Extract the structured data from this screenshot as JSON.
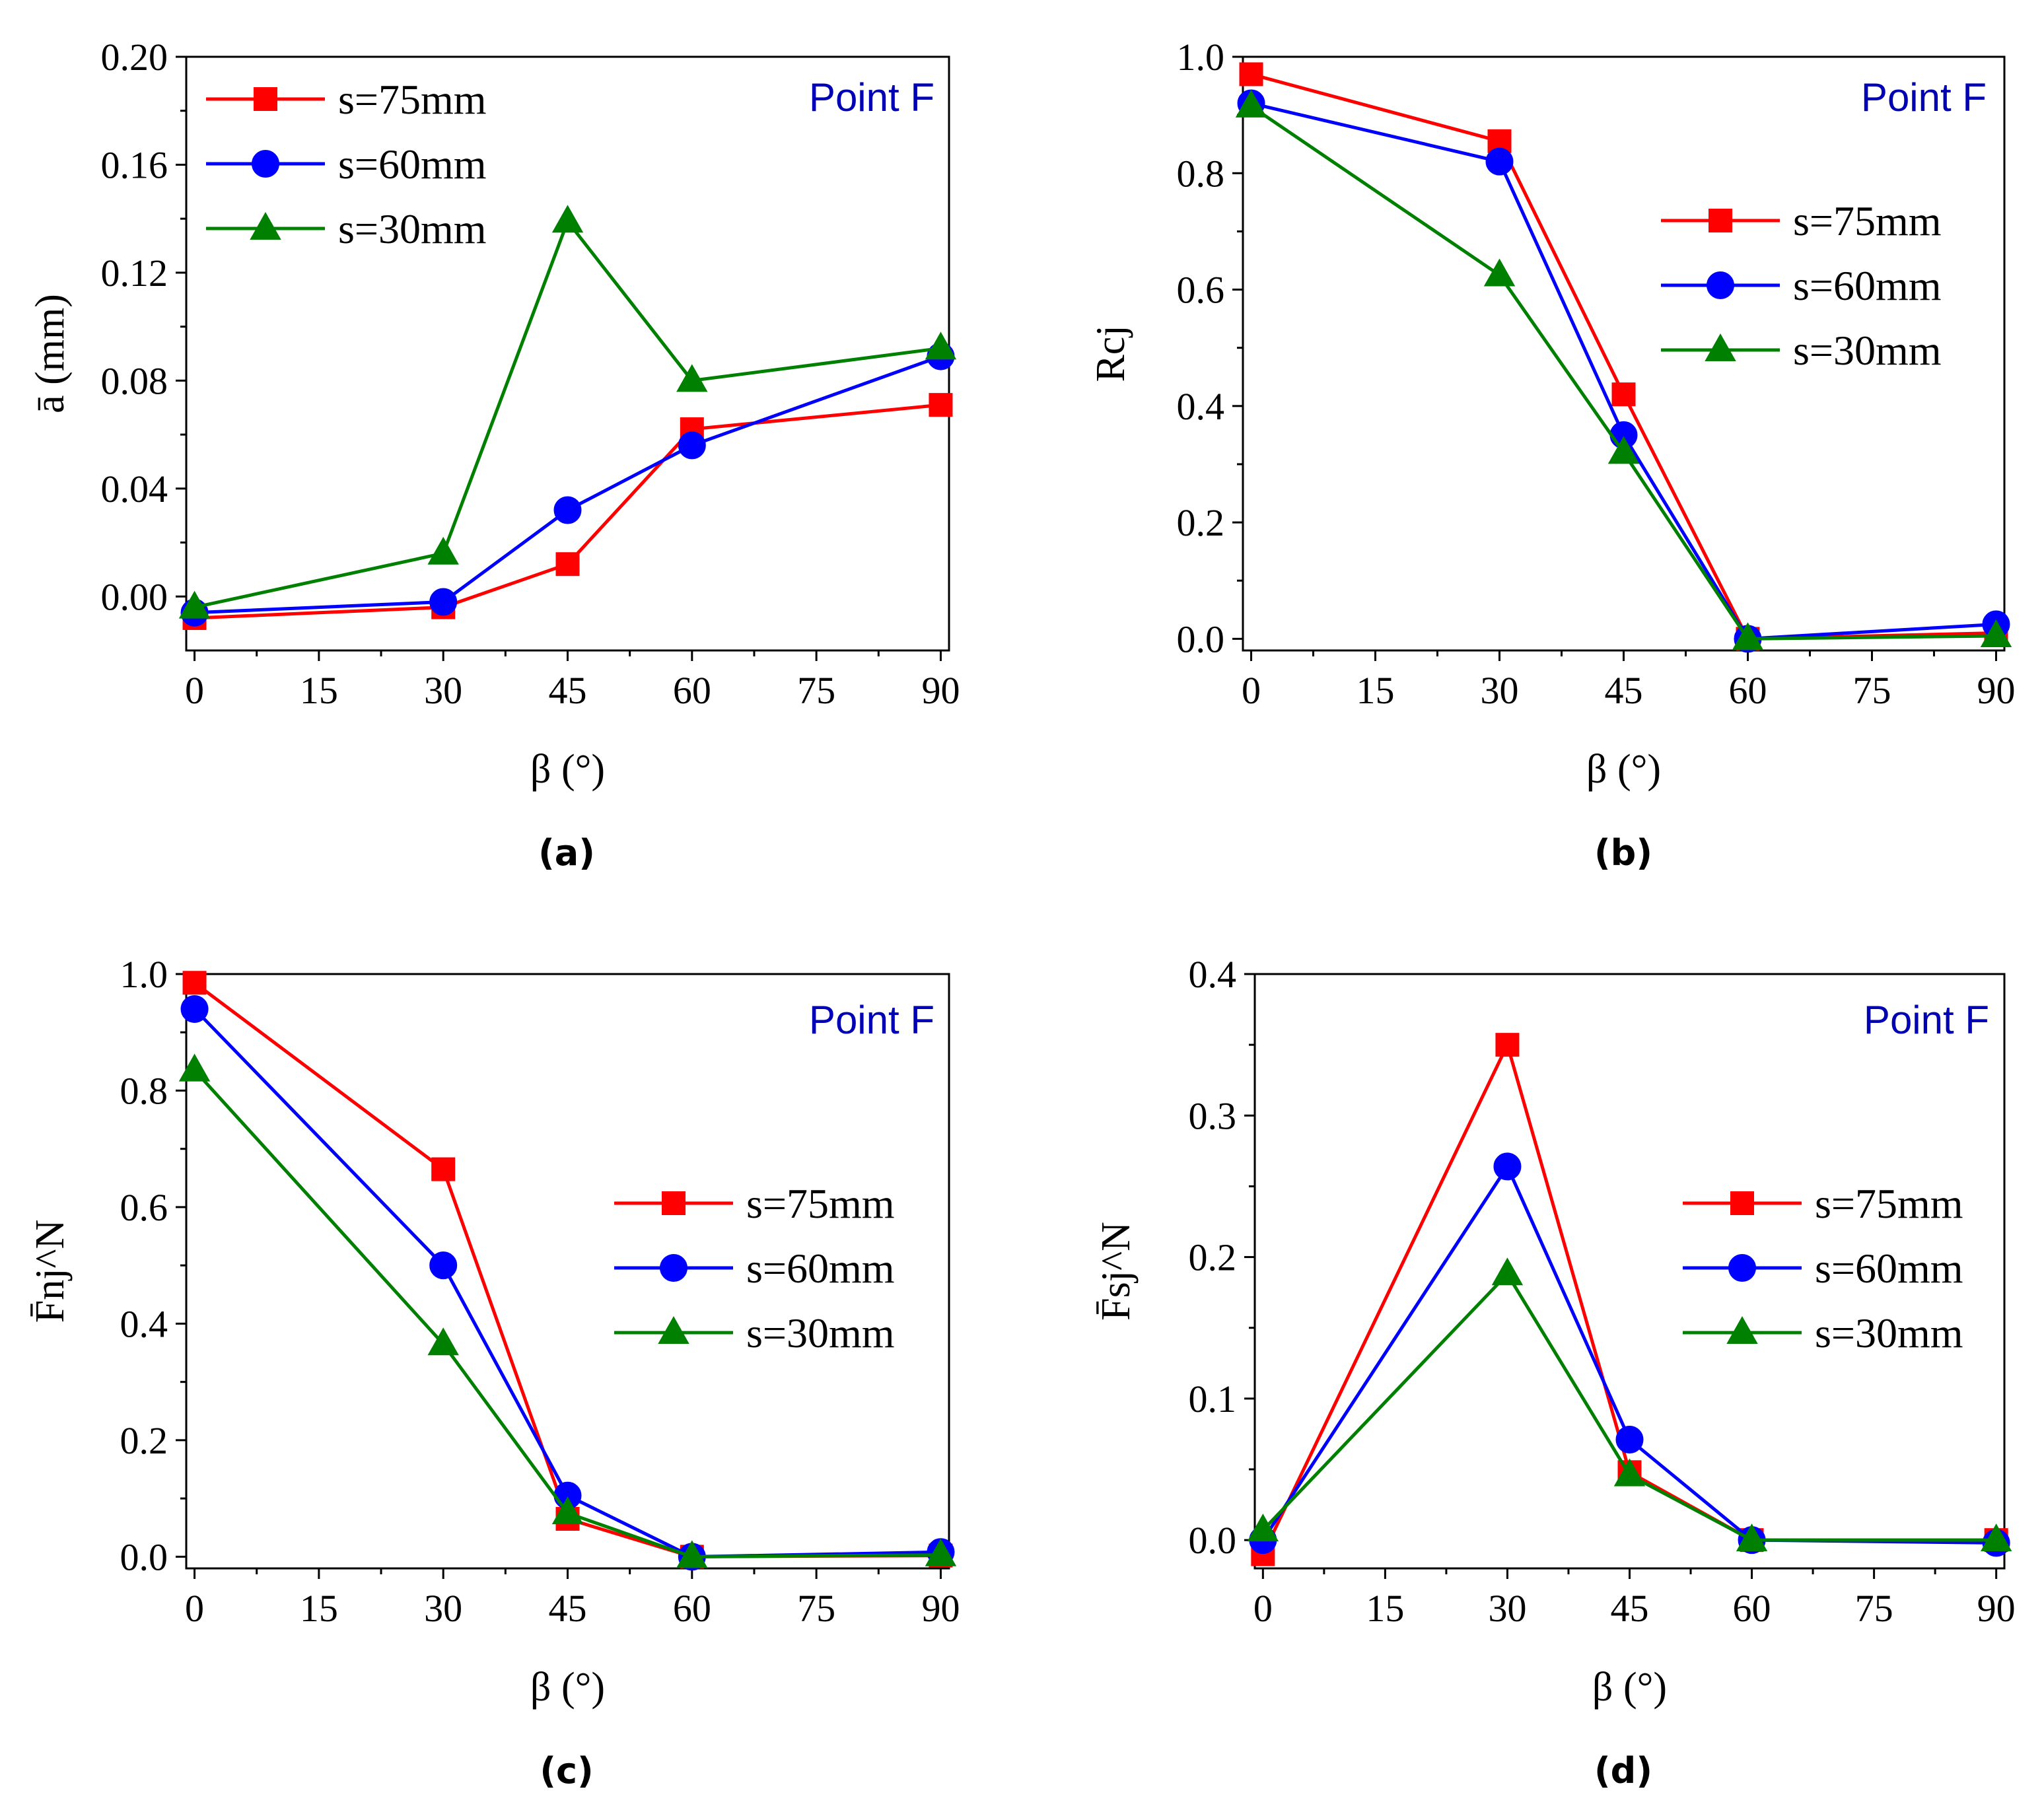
{
  "series_style": {
    "s75": {
      "label": "=75mm",
      "prefix": "s",
      "color": "#ff0000",
      "marker": "square"
    },
    "s60": {
      "label": "=60mm",
      "prefix": "s",
      "color": "#0000ff",
      "marker": "circle"
    },
    "s30": {
      "label": "=30mm",
      "prefix": "s",
      "color": "#008000",
      "marker": "triangle"
    }
  },
  "chart_data": [
    {
      "id": "a",
      "type": "line",
      "caption": "(a)",
      "annotation": "Point F",
      "xlabel": "β (°)",
      "ylabel": "ā (mm)",
      "xlim": [
        -1,
        91
      ],
      "ylim": [
        -0.02,
        0.2
      ],
      "xticks": [
        0,
        15,
        30,
        45,
        60,
        75,
        90
      ],
      "xtick_labels": [
        "0",
        "15",
        "30",
        "45",
        "60",
        "75",
        "90"
      ],
      "yticks": [
        0.0,
        0.04,
        0.08,
        0.12,
        0.16,
        0.2
      ],
      "ytick_labels": [
        "0.00",
        "0.04",
        "0.08",
        "0.12",
        "0.16",
        "0.20"
      ],
      "legend": "top-left",
      "x": [
        0,
        30,
        45,
        60,
        90
      ],
      "series": [
        {
          "key": "s75",
          "name": "s=75mm",
          "values": [
            -0.008,
            -0.004,
            0.012,
            0.062,
            0.071
          ]
        },
        {
          "key": "s60",
          "name": "s=60mm",
          "values": [
            -0.006,
            -0.002,
            0.032,
            0.056,
            0.089
          ]
        },
        {
          "key": "s30",
          "name": "s=30mm",
          "values": [
            -0.004,
            0.016,
            0.139,
            0.08,
            0.092
          ]
        }
      ]
    },
    {
      "id": "b",
      "type": "line",
      "caption": "(b)",
      "annotation": "Point F",
      "xlabel": "β (°)",
      "ylabel": "Rcj",
      "xlim": [
        -1,
        91
      ],
      "ylim": [
        -0.02,
        1.0
      ],
      "xticks": [
        0,
        15,
        30,
        45,
        60,
        75,
        90
      ],
      "xtick_labels": [
        "0",
        "15",
        "30",
        "45",
        "60",
        "75",
        "90"
      ],
      "yticks": [
        0.0,
        0.2,
        0.4,
        0.6,
        0.8,
        1.0
      ],
      "ytick_labels": [
        "0.0",
        "0.2",
        "0.4",
        "0.6",
        "0.8",
        "1.0"
      ],
      "legend": "right",
      "x": [
        0,
        30,
        45,
        60,
        90
      ],
      "series": [
        {
          "key": "s75",
          "name": "s=75mm",
          "values": [
            0.97,
            0.855,
            0.42,
            0.0,
            0.01
          ]
        },
        {
          "key": "s60",
          "name": "s=60mm",
          "values": [
            0.92,
            0.82,
            0.35,
            0.0,
            0.025
          ]
        },
        {
          "key": "s30",
          "name": "s=30mm",
          "values": [
            0.915,
            0.625,
            0.32,
            0.0,
            0.005
          ]
        }
      ]
    },
    {
      "id": "c",
      "type": "line",
      "caption": "(c)",
      "annotation": "Point F",
      "xlabel": "β (°)",
      "ylabel": "F̄nj^N",
      "xlim": [
        -1,
        91
      ],
      "ylim": [
        -0.02,
        1.0
      ],
      "xticks": [
        0,
        15,
        30,
        45,
        60,
        75,
        90
      ],
      "xtick_labels": [
        "0",
        "15",
        "30",
        "45",
        "60",
        "75",
        "90"
      ],
      "yticks": [
        0.0,
        0.2,
        0.4,
        0.6,
        0.8,
        1.0
      ],
      "ytick_labels": [
        "0.0",
        "0.2",
        "0.4",
        "0.6",
        "0.8",
        "1.0"
      ],
      "legend": "right",
      "x": [
        0,
        30,
        45,
        60,
        90
      ],
      "series": [
        {
          "key": "s75",
          "name": "s=75mm",
          "values": [
            0.985,
            0.665,
            0.065,
            0.0,
            0.002
          ]
        },
        {
          "key": "s60",
          "name": "s=60mm",
          "values": [
            0.94,
            0.5,
            0.105,
            0.0,
            0.008
          ]
        },
        {
          "key": "s30",
          "name": "s=30mm",
          "values": [
            0.835,
            0.365,
            0.075,
            0.0,
            0.003
          ]
        }
      ]
    },
    {
      "id": "d",
      "type": "line",
      "caption": "(d)",
      "annotation": "Point F",
      "xlabel": "β (°)",
      "ylabel": "F̄sj^N",
      "xlim": [
        -1,
        91
      ],
      "ylim": [
        -0.02,
        0.4
      ],
      "xticks": [
        0,
        15,
        30,
        45,
        60,
        75,
        90
      ],
      "xtick_labels": [
        "0",
        "15",
        "30",
        "45",
        "60",
        "75",
        "90"
      ],
      "yticks": [
        0.0,
        0.1,
        0.2,
        0.3,
        0.4
      ],
      "ytick_labels": [
        "0.0",
        "0.1",
        "0.2",
        "0.3",
        "0.4"
      ],
      "legend": "right",
      "x": [
        0,
        30,
        45,
        60,
        90
      ],
      "series": [
        {
          "key": "s75",
          "name": "s=75mm",
          "values": [
            -0.01,
            0.35,
            0.048,
            0.0,
            0.0
          ]
        },
        {
          "key": "s60",
          "name": "s=60mm",
          "values": [
            0.0,
            0.264,
            0.071,
            0.0,
            -0.002
          ]
        },
        {
          "key": "s30",
          "name": "s=30mm",
          "values": [
            0.007,
            0.188,
            0.046,
            0.0,
            0.0
          ]
        }
      ]
    }
  ]
}
